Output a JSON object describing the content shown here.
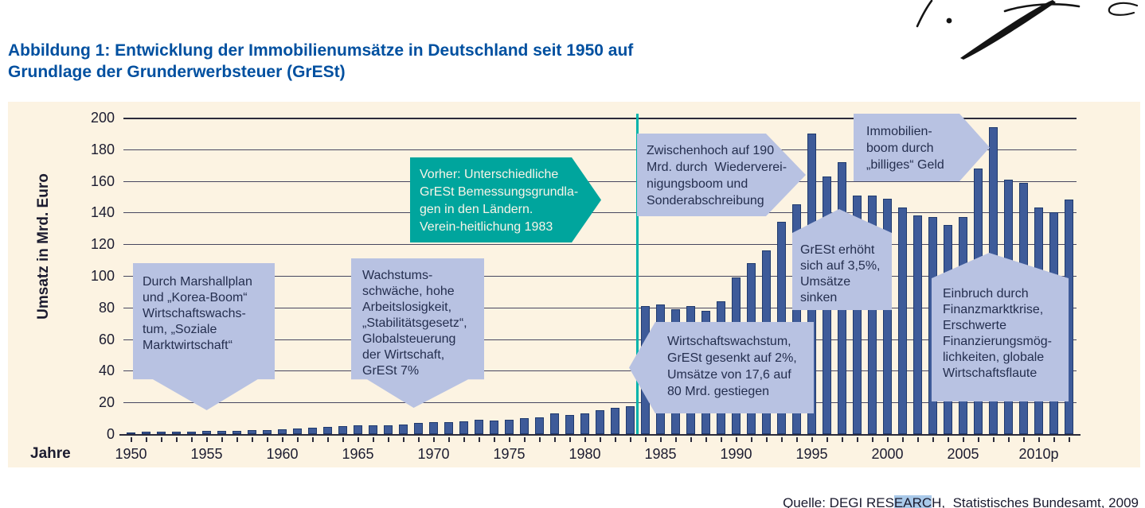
{
  "figure": {
    "title_line1": "Abbildung 1: Entwicklung der Immobilienumsätze in Deutschland seit 1950 auf",
    "title_line2": "Grundlage der Grunderwerbsteuer (GrESt)",
    "title_color": "#0050a0",
    "panel_background": "#fcf3e2",
    "source": {
      "prefix": "Quelle: DEGI RES",
      "highlighted": "EARC",
      "suffix": "H,  Statistisches Bundesamt, 2009",
      "highlight_color": "#a9c9e9"
    }
  },
  "chart_data": {
    "type": "bar",
    "title": "Entwicklung der Immobilienumsätze in Deutschland seit 1950 auf Grundlage der Grunderwerbsteuer (GrESt)",
    "xlabel": "Jahre",
    "ylabel": "Umsatz in Mrd. Euro",
    "ylim": [
      0,
      200
    ],
    "yticks": [
      0,
      20,
      40,
      60,
      80,
      100,
      120,
      140,
      160,
      180,
      200
    ],
    "xtick_labels": [
      "1950",
      "1955",
      "1960",
      "1965",
      "1970",
      "1975",
      "1980",
      "1985",
      "1990",
      "1995",
      "2000",
      "2005",
      "2010p"
    ],
    "grid": true,
    "bar_color": "#3e5b99",
    "bar_border_color": "#203a6d",
    "years": [
      1950,
      1951,
      1952,
      1953,
      1954,
      1955,
      1956,
      1957,
      1958,
      1959,
      1960,
      1961,
      1962,
      1963,
      1964,
      1965,
      1966,
      1967,
      1968,
      1969,
      1970,
      1971,
      1972,
      1973,
      1974,
      1975,
      1976,
      1977,
      1978,
      1979,
      1980,
      1981,
      1982,
      1983,
      1984,
      1985,
      1986,
      1987,
      1988,
      1989,
      1990,
      1991,
      1992,
      1993,
      1994,
      1995,
      1996,
      1997,
      1998,
      1999,
      2000,
      2001,
      2002,
      2003,
      2004,
      2005,
      2006,
      2007,
      2008,
      2009,
      2010,
      2011,
      2012
    ],
    "values": [
      1,
      1.5,
      1.5,
      1.5,
      1.7,
      2.2,
      2.2,
      2.2,
      2.4,
      2.7,
      3.1,
      3.4,
      4.1,
      4.7,
      5.1,
      5.3,
      5.6,
      5.6,
      6.1,
      7.1,
      7.6,
      7.5,
      8.1,
      9.2,
      8.5,
      9,
      10.2,
      10.8,
      12.9,
      11.9,
      13.2,
      14.9,
      16.4,
      17.6,
      81,
      82,
      79,
      81,
      78,
      84,
      99,
      108,
      116,
      134,
      145,
      190,
      163,
      172,
      151,
      151,
      149,
      143,
      138,
      137,
      132,
      137,
      168,
      194,
      161,
      159,
      143,
      140,
      148
    ],
    "divider": {
      "after_year": 1983,
      "color": "#00b3ab"
    },
    "annotations": [
      {
        "id": "marshallplan",
        "shape": "box-point-down",
        "color": "#b8c2e2",
        "text": "Durch Marshallplan\nund „Korea-Boom“\nWirtschaftswachs-\ntum, „Soziale\nMarktwirtschaft“"
      },
      {
        "id": "wachstumsschwaeche",
        "shape": "box-point-down",
        "color": "#b8c2e2",
        "text": "Wachstums-\nschwäche, hohe\nArbeitslosigkeit,\n„Stabilitätsgesetz“,\nGlobalsteuerung\nder Wirtschaft,\nGrESt 7%"
      },
      {
        "id": "vereinheitlichung",
        "shape": "arrow-right",
        "color": "#00a59d",
        "text": "Vorher: Unterschiedliche\nGrESt Bemessungsgrundla-\ngen in den Ländern.\nVerein-heitlichung 1983"
      },
      {
        "id": "zwischenhoch",
        "shape": "arrow-right",
        "color": "#b8c2e2",
        "text": "Zwischenhoch auf 190\nMrd. durch  Wiederverei-\nnigungsboom und\nSonderabschreibung"
      },
      {
        "id": "grest-erhoeht",
        "shape": "box-point-up",
        "color": "#b8c2e2",
        "text": "GrESt erhöht\nsich auf 3,5%,\nUmsätze\nsinken"
      },
      {
        "id": "immobilienboom",
        "shape": "arrow-right",
        "color": "#b8c2e2",
        "text": "Immobilien-\nboom durch\n„billiges“ Geld"
      },
      {
        "id": "wirtschaftswachstum",
        "shape": "arrow-left",
        "color": "#b8c2e2",
        "text": "Wirtschaftswachstum,\nGrESt gesenkt auf 2%,\nUmsätze von 17,6 auf\n80 Mrd. gestiegen"
      },
      {
        "id": "einbruch",
        "shape": "box-point-up",
        "color": "#b8c2e2",
        "text": "Einbruch durch\nFinanzmarktkrise,\nErschwerte\nFinanzierungsmög-\nlichkeiten, globale\nWirtschaftsflaute"
      }
    ]
  }
}
